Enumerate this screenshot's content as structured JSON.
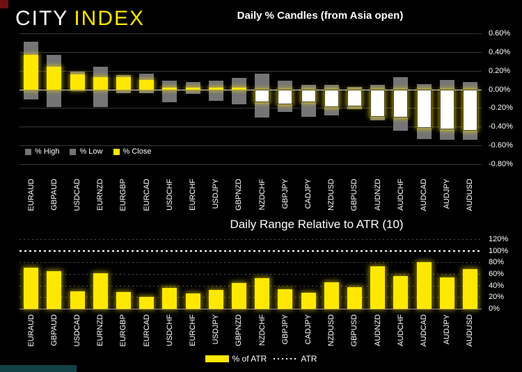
{
  "logo": {
    "city": "CITY",
    "index": "INDEX"
  },
  "branding": {
    "accent_yellow": "#ffe800",
    "bar_gray": "#757575",
    "negative_close_white": "#ffffff",
    "corner_square_red": "#6e1113",
    "footer_strip_teal": "#134245",
    "background": "#000000"
  },
  "chart_data": [
    {
      "type": "bar",
      "variant": "high_low_close_percent_candles",
      "title": "Daily % Candles (from Asia open)",
      "categories": [
        "EURAUD",
        "GBPAUD",
        "USDCAD",
        "EURNZD",
        "EURGBP",
        "EURCAD",
        "USDCHF",
        "EURCHF",
        "USDJPY",
        "GBPNZD",
        "NZDCHF",
        "GBPJPY",
        "CADJPY",
        "NZDUSD",
        "GBPUSD",
        "AUDNZD",
        "AUDCHF",
        "AUDCAD",
        "AUDJPY",
        "AUDUSD"
      ],
      "series": [
        {
          "name": "% High",
          "color": "#757575",
          "values": [
            0.51,
            0.37,
            0.19,
            0.24,
            0.15,
            0.17,
            0.09,
            0.08,
            0.09,
            0.12,
            0.17,
            0.09,
            0.05,
            0.05,
            0.03,
            0.05,
            0.13,
            0.06,
            0.1,
            0.08
          ]
        },
        {
          "name": "% Low",
          "color": "#757575",
          "values": [
            -0.11,
            -0.19,
            -0.02,
            -0.19,
            -0.04,
            -0.04,
            -0.14,
            -0.05,
            -0.12,
            -0.16,
            -0.3,
            -0.24,
            -0.29,
            -0.28,
            -0.21,
            -0.33,
            -0.44,
            -0.53,
            -0.54,
            -0.54
          ]
        },
        {
          "name": "% Close",
          "color": "#ffe800",
          "negative_color": "#ffffff",
          "values": [
            0.37,
            0.24,
            0.16,
            0.13,
            0.13,
            0.1,
            0.02,
            0.02,
            0.02,
            0.02,
            -0.14,
            -0.16,
            -0.14,
            -0.19,
            -0.18,
            -0.29,
            -0.3,
            -0.41,
            -0.43,
            -0.44
          ]
        }
      ],
      "ylim": [
        -0.8,
        0.6
      ],
      "y_tick_labels": [
        "0.60%",
        "0.40%",
        "0.20%",
        "0.00%",
        "-0.20%",
        "-0.40%",
        "-0.60%",
        "-0.80%"
      ],
      "grid": true,
      "legend_position": "bottom-left"
    },
    {
      "type": "bar",
      "title": "Daily Range Relative to ATR (10)",
      "categories": [
        "EURAUD",
        "GBPAUD",
        "USDCAD",
        "EURNZD",
        "EURGBP",
        "EURCAD",
        "USDCHF",
        "EURCHF",
        "USDJPY",
        "GBPNZD",
        "NZDCHF",
        "GBPJPY",
        "CADJPY",
        "NZDUSD",
        "GBPUSD",
        "AUDNZD",
        "AUDCHF",
        "AUDCAD",
        "AUDJPY",
        "AUDUSD"
      ],
      "series": [
        {
          "name": "% of ATR",
          "color": "#ffe800",
          "values": [
            71,
            65,
            30,
            61,
            29,
            21,
            36,
            27,
            32,
            45,
            53,
            34,
            28,
            46,
            37,
            73,
            57,
            80,
            54,
            68
          ]
        }
      ],
      "reference_line": {
        "name": "ATR",
        "value": 100,
        "style": "dotted",
        "color": "#ffffff"
      },
      "ylim": [
        0,
        120
      ],
      "y_tick_labels": [
        "120%",
        "100%",
        "80%",
        "60%",
        "40%",
        "20%",
        "0%"
      ],
      "grid": "dotted",
      "legend_position": "bottom-center"
    }
  ]
}
